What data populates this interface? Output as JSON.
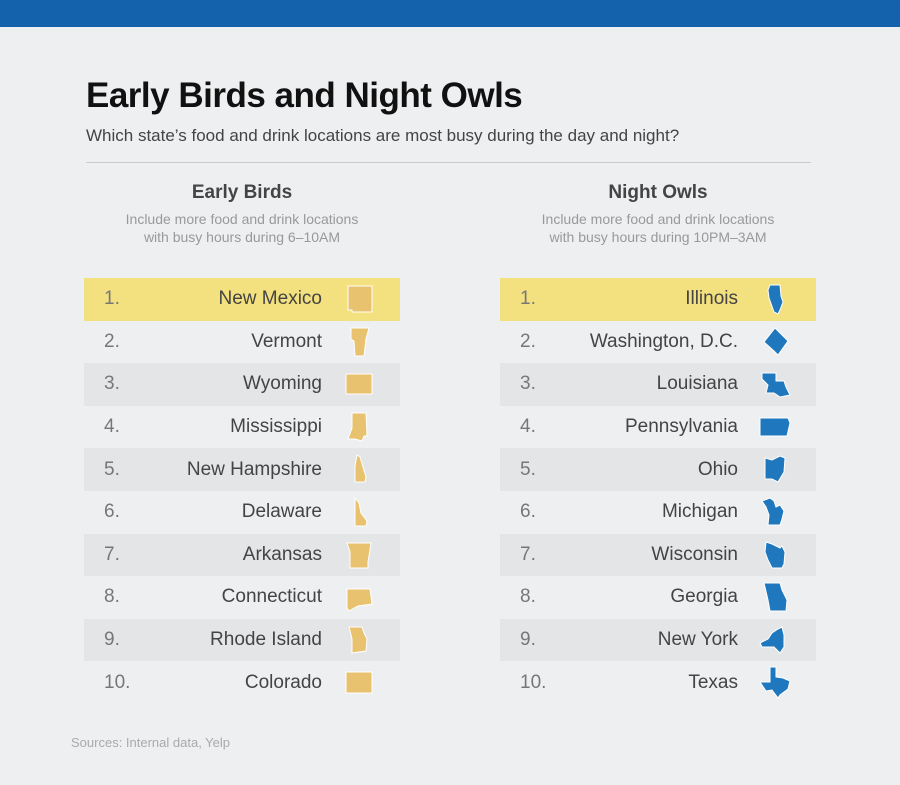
{
  "title": "Early Birds and Night Owls",
  "subtitle": "Which state’s food and drink locations are most busy during the day and night?",
  "colors": {
    "top_bar": "#1462ab",
    "highlight": "#f3e07e",
    "early_icon": "#e8c26e",
    "night_icon": "#1f78be"
  },
  "early": {
    "heading": "Early Birds",
    "desc_line1": "Include more food and drink locations",
    "desc_line2": "with busy hours during 6–10AM",
    "items": [
      {
        "rank": "1.",
        "state": "New Mexico"
      },
      {
        "rank": "2.",
        "state": "Vermont"
      },
      {
        "rank": "3.",
        "state": "Wyoming"
      },
      {
        "rank": "4.",
        "state": "Mississippi"
      },
      {
        "rank": "5.",
        "state": "New Hampshire"
      },
      {
        "rank": "6.",
        "state": "Delaware"
      },
      {
        "rank": "7.",
        "state": "Arkansas"
      },
      {
        "rank": "8.",
        "state": "Connecticut"
      },
      {
        "rank": "9.",
        "state": "Rhode Island"
      },
      {
        "rank": "10.",
        "state": "Colorado"
      }
    ]
  },
  "night": {
    "heading": "Night Owls",
    "desc_line1": "Include more food and drink locations",
    "desc_line2": "with busy hours during 10PM–3AM",
    "items": [
      {
        "rank": "1.",
        "state": "Illinois"
      },
      {
        "rank": "2.",
        "state": "Washington, D.C."
      },
      {
        "rank": "3.",
        "state": "Louisiana"
      },
      {
        "rank": "4.",
        "state": "Pennsylvania"
      },
      {
        "rank": "5.",
        "state": "Ohio"
      },
      {
        "rank": "6.",
        "state": "Michigan"
      },
      {
        "rank": "7.",
        "state": "Wisconsin"
      },
      {
        "rank": "8.",
        "state": "Georgia"
      },
      {
        "rank": "9.",
        "state": "New York"
      },
      {
        "rank": "10.",
        "state": "Texas"
      }
    ]
  },
  "source": "Sources: Internal data, Yelp"
}
